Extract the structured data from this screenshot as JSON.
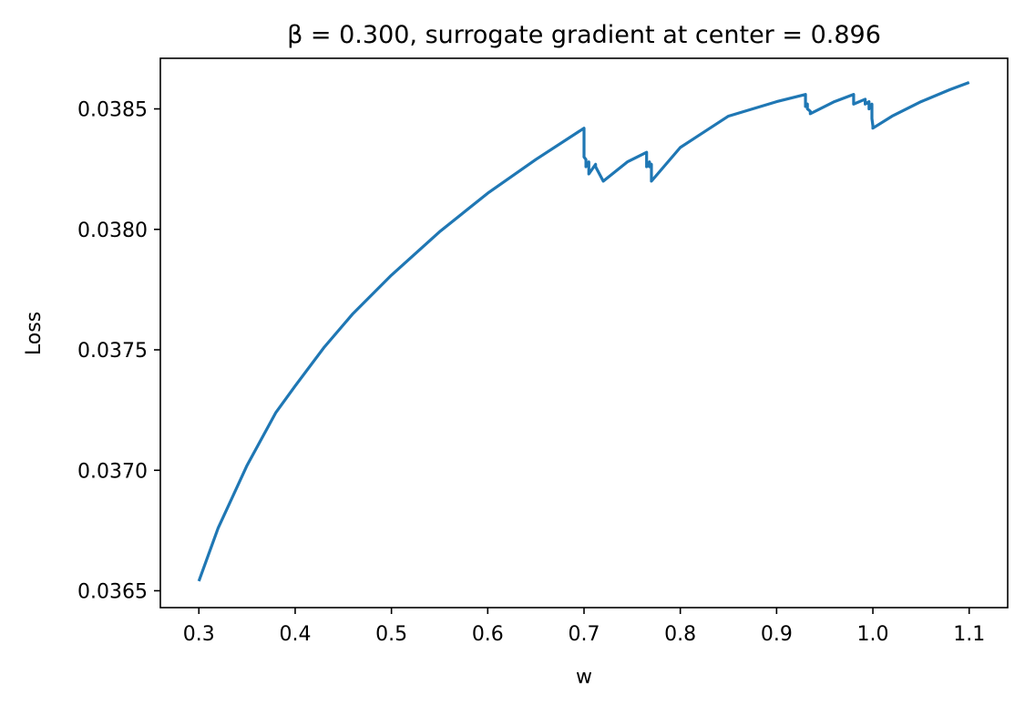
{
  "chart_data": {
    "type": "line",
    "title": "β =  0.300, surrogate gradient at center =  0.896",
    "xlabel": "w",
    "ylabel": "Loss",
    "xlim": [
      0.26,
      1.14
    ],
    "ylim": [
      0.03643,
      0.03871
    ],
    "xticks": [
      0.3,
      0.4,
      0.5,
      0.6,
      0.7,
      0.8,
      0.9,
      1.0,
      1.1
    ],
    "xtick_labels": [
      "0.3",
      "0.4",
      "0.5",
      "0.6",
      "0.7",
      "0.8",
      "0.9",
      "1.0",
      "1.1"
    ],
    "yticks": [
      0.0365,
      0.037,
      0.0375,
      0.038,
      0.0385
    ],
    "ytick_labels": [
      "0.0365",
      "0.0370",
      "0.0375",
      "0.0380",
      "0.0385"
    ],
    "grid": false,
    "series": [
      {
        "color": "#1f77b4",
        "x": [
          0.3,
          0.32,
          0.35,
          0.38,
          0.4,
          0.43,
          0.46,
          0.5,
          0.55,
          0.6,
          0.65,
          0.7,
          0.7,
          0.702,
          0.702,
          0.705,
          0.705,
          0.712,
          0.712,
          0.72,
          0.72,
          0.745,
          0.765,
          0.765,
          0.768,
          0.768,
          0.77,
          0.77,
          0.8,
          0.85,
          0.9,
          0.93,
          0.93,
          0.932,
          0.932,
          0.935,
          0.935,
          0.96,
          0.98,
          0.98,
          0.992,
          0.992,
          0.996,
          0.996,
          0.999,
          0.999,
          1.0,
          1.0,
          1.02,
          1.05,
          1.08,
          1.1
        ],
        "y": [
          0.03654,
          0.03676,
          0.03702,
          0.03724,
          0.03735,
          0.03751,
          0.03765,
          0.03781,
          0.03799,
          0.03815,
          0.03829,
          0.03842,
          0.0383,
          0.03829,
          0.03826,
          0.03828,
          0.03823,
          0.03827,
          0.03826,
          0.0382,
          0.0382,
          0.03828,
          0.03832,
          0.03826,
          0.03828,
          0.03826,
          0.03827,
          0.0382,
          0.03834,
          0.03847,
          0.03853,
          0.03856,
          0.03851,
          0.03852,
          0.0385,
          0.03849,
          0.03848,
          0.03853,
          0.03856,
          0.03852,
          0.03854,
          0.03852,
          0.03853,
          0.0385,
          0.03852,
          0.03846,
          0.03843,
          0.03842,
          0.03847,
          0.03853,
          0.03858,
          0.03861
        ]
      }
    ]
  }
}
